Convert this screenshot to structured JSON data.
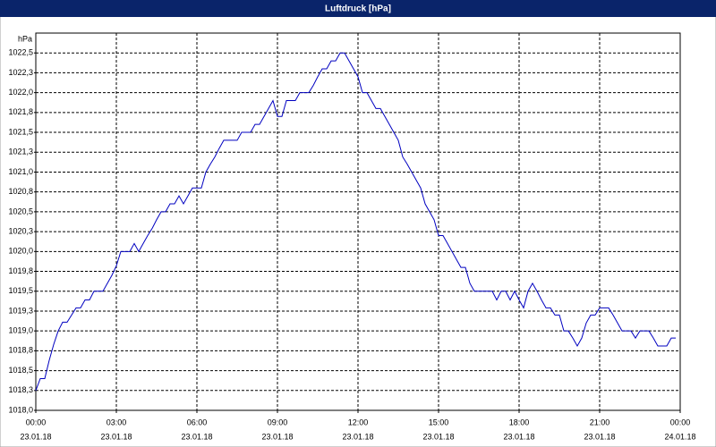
{
  "chart_data": {
    "type": "line",
    "title": "Luftdruck [hPa]",
    "y_label": "hPa",
    "xlim": [
      0,
      1440
    ],
    "ylim": [
      1018,
      1022.75
    ],
    "grid": true,
    "xticks": [
      {
        "value": 0,
        "label": "00:00",
        "date": "23.01.18"
      },
      {
        "value": 180,
        "label": "03:00",
        "date": "23.01.18"
      },
      {
        "value": 360,
        "label": "06:00",
        "date": "23.01.18"
      },
      {
        "value": 540,
        "label": "09:00",
        "date": "23.01.18"
      },
      {
        "value": 720,
        "label": "12:00",
        "date": "23.01.18"
      },
      {
        "value": 900,
        "label": "15:00",
        "date": "23.01.18"
      },
      {
        "value": 1080,
        "label": "18:00",
        "date": "23.01.18"
      },
      {
        "value": 1260,
        "label": "21:00",
        "date": "23.01.18"
      },
      {
        "value": 1440,
        "label": "00:00",
        "date": "24.01.18"
      }
    ],
    "yticks": [
      {
        "value": 1018,
        "label": "1018,0"
      },
      {
        "value": 1018.25,
        "label": "1018,3"
      },
      {
        "value": 1018.5,
        "label": "1018,5"
      },
      {
        "value": 1018.75,
        "label": "1018,8"
      },
      {
        "value": 1019,
        "label": "1019,0"
      },
      {
        "value": 1019.25,
        "label": "1019,3"
      },
      {
        "value": 1019.5,
        "label": "1019,5"
      },
      {
        "value": 1019.75,
        "label": "1019,8"
      },
      {
        "value": 1020,
        "label": "1020,0"
      },
      {
        "value": 1020.25,
        "label": "1020,3"
      },
      {
        "value": 1020.5,
        "label": "1020,5"
      },
      {
        "value": 1020.75,
        "label": "1020,8"
      },
      {
        "value": 1021,
        "label": "1021,0"
      },
      {
        "value": 1021.25,
        "label": "1021,3"
      },
      {
        "value": 1021.5,
        "label": "1021,5"
      },
      {
        "value": 1021.75,
        "label": "1021,8"
      },
      {
        "value": 1022,
        "label": "1022,0"
      },
      {
        "value": 1022.25,
        "label": "1022,3"
      },
      {
        "value": 1022.5,
        "label": "1022,5"
      }
    ],
    "x": [
      0,
      10,
      20,
      30,
      40,
      50,
      60,
      70,
      80,
      90,
      100,
      110,
      120,
      130,
      140,
      150,
      160,
      170,
      180,
      190,
      200,
      210,
      220,
      230,
      240,
      250,
      260,
      270,
      280,
      290,
      300,
      310,
      320,
      330,
      340,
      350,
      360,
      370,
      380,
      390,
      400,
      410,
      420,
      430,
      440,
      450,
      460,
      470,
      480,
      490,
      500,
      510,
      520,
      530,
      540,
      550,
      560,
      570,
      580,
      590,
      600,
      610,
      620,
      630,
      640,
      650,
      660,
      670,
      680,
      690,
      700,
      710,
      720,
      730,
      740,
      750,
      760,
      770,
      780,
      790,
      800,
      810,
      820,
      830,
      840,
      850,
      860,
      870,
      880,
      890,
      900,
      910,
      920,
      930,
      940,
      950,
      960,
      970,
      980,
      990,
      1000,
      1010,
      1020,
      1030,
      1040,
      1050,
      1060,
      1070,
      1080,
      1090,
      1100,
      1110,
      1120,
      1130,
      1140,
      1150,
      1160,
      1170,
      1180,
      1190,
      1200,
      1210,
      1220,
      1230,
      1240,
      1250,
      1260,
      1270,
      1280,
      1290,
      1300,
      1310,
      1320,
      1330,
      1340,
      1350,
      1360,
      1370,
      1380,
      1390,
      1400,
      1410,
      1420,
      1430
    ],
    "series": [
      {
        "name": "Luftdruck",
        "color": "#0000c0",
        "values": [
          1018.25,
          1018.4,
          1018.4,
          1018.63,
          1018.83,
          1019.0,
          1019.11,
          1019.11,
          1019.2,
          1019.29,
          1019.29,
          1019.39,
          1019.39,
          1019.5,
          1019.5,
          1019.5,
          1019.6,
          1019.7,
          1019.82,
          1020.0,
          1020.0,
          1020.0,
          1020.1,
          1020.0,
          1020.1,
          1020.2,
          1020.29,
          1020.4,
          1020.5,
          1020.5,
          1020.6,
          1020.6,
          1020.7,
          1020.6,
          1020.7,
          1020.8,
          1020.8,
          1020.8,
          1021.0,
          1021.1,
          1021.19,
          1021.3,
          1021.4,
          1021.4,
          1021.4,
          1021.4,
          1021.5,
          1021.5,
          1021.5,
          1021.6,
          1021.6,
          1021.7,
          1021.8,
          1021.9,
          1021.7,
          1021.7,
          1021.9,
          1021.9,
          1021.9,
          1022.0,
          1022.0,
          1022.0,
          1022.09,
          1022.2,
          1022.3,
          1022.3,
          1022.4,
          1022.4,
          1022.5,
          1022.5,
          1022.4,
          1022.3,
          1022.2,
          1022.0,
          1022.0,
          1021.9,
          1021.8,
          1021.8,
          1021.7,
          1021.6,
          1021.5,
          1021.4,
          1021.19,
          1021.1,
          1021.0,
          1020.9,
          1020.8,
          1020.6,
          1020.5,
          1020.4,
          1020.2,
          1020.2,
          1020.1,
          1020.0,
          1019.9,
          1019.8,
          1019.8,
          1019.6,
          1019.5,
          1019.5,
          1019.5,
          1019.5,
          1019.5,
          1019.39,
          1019.5,
          1019.5,
          1019.39,
          1019.5,
          1019.39,
          1019.29,
          1019.5,
          1019.6,
          1019.5,
          1019.39,
          1019.29,
          1019.29,
          1019.2,
          1019.2,
          1019.0,
          1019.0,
          1018.91,
          1018.81,
          1018.91,
          1019.1,
          1019.2,
          1019.2,
          1019.29,
          1019.29,
          1019.29,
          1019.2,
          1019.1,
          1019.0,
          1019.0,
          1019.0,
          1018.91,
          1019.0,
          1019.0,
          1019.0,
          1018.91,
          1018.81,
          1018.81,
          1018.81,
          1018.91,
          1018.91
        ]
      }
    ]
  }
}
